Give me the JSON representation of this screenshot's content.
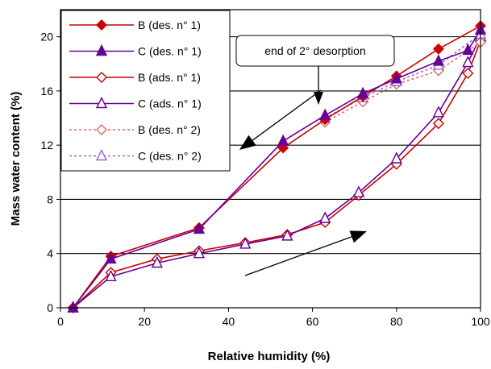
{
  "chart_data": {
    "type": "line",
    "xlabel": "Relative humidity (%)",
    "ylabel": "Mass water content (%)",
    "xlim": [
      0,
      100
    ],
    "ylim": [
      0,
      22
    ],
    "xticks": [
      0,
      20,
      40,
      60,
      80,
      100
    ],
    "xtick_labels": [
      "0",
      "20",
      "40",
      "60",
      "80",
      "100"
    ],
    "yticks": [
      0,
      4,
      8,
      12,
      16,
      20
    ],
    "ytick_labels": [
      "0",
      "4",
      "8",
      "12",
      "16",
      "20"
    ],
    "grid": "horizontal",
    "legend_position": "top-left",
    "series": [
      {
        "name": "B (des. n° 1)",
        "color": "#cc0000",
        "marker": "diamond-filled",
        "dash": "solid",
        "x": [
          3,
          12,
          33,
          53,
          63,
          72,
          80,
          90,
          100
        ],
        "y": [
          0,
          3.8,
          5.9,
          11.8,
          13.9,
          15.6,
          17.1,
          19.1,
          20.8
        ]
      },
      {
        "name": "C (des. n° 1)",
        "color": "#660099",
        "marker": "triangle-filled",
        "dash": "solid",
        "x": [
          3,
          12,
          33,
          53,
          63,
          72,
          80,
          90,
          97,
          100
        ],
        "y": [
          0,
          3.6,
          5.8,
          12.3,
          14.2,
          15.8,
          16.9,
          18.2,
          19.0,
          20.5
        ]
      },
      {
        "name": "B (ads. n° 1)",
        "color": "#cc0000",
        "marker": "diamond-open",
        "dash": "solid",
        "x": [
          3,
          12,
          23,
          33,
          44,
          54,
          63,
          71,
          80,
          90,
          97,
          100
        ],
        "y": [
          0,
          2.6,
          3.6,
          4.2,
          4.8,
          5.4,
          6.3,
          8.3,
          10.6,
          13.6,
          17.3,
          19.7
        ]
      },
      {
        "name": "C (ads. n° 1)",
        "color": "#660099",
        "marker": "triangle-open",
        "dash": "solid",
        "x": [
          3,
          12,
          23,
          33,
          44,
          54,
          63,
          71,
          80,
          90,
          97,
          100
        ],
        "y": [
          0,
          2.3,
          3.3,
          4.0,
          4.7,
          5.3,
          6.6,
          8.5,
          11.0,
          14.4,
          18.1,
          20.0
        ]
      },
      {
        "name": "B (des. n° 2)",
        "color": "#e06666",
        "marker": "diamond-open",
        "dash": "dotted",
        "x": [
          63,
          72,
          80,
          90,
          100
        ],
        "y": [
          13.7,
          15.2,
          16.5,
          17.5,
          19.6
        ]
      },
      {
        "name": "C (des. n° 2)",
        "color": "#9966cc",
        "marker": "triangle-open",
        "dash": "dotted",
        "x": [
          63,
          72,
          80,
          90,
          100
        ],
        "y": [
          14.0,
          15.5,
          16.7,
          17.9,
          20.2
        ]
      }
    ],
    "annotations": [
      {
        "text": "end of 2° desorption"
      }
    ]
  }
}
